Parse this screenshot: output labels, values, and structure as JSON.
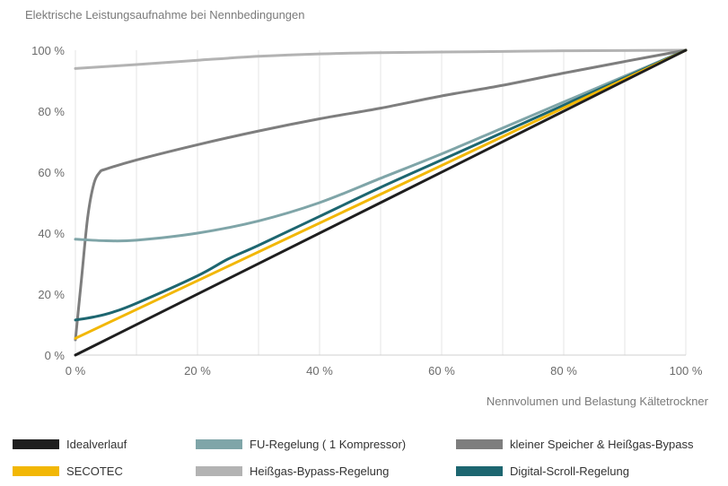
{
  "chart_data": {
    "type": "line",
    "ylabel": "Elektrische Leistungsaufnahme bei Nennbedingungen",
    "xlabel": "Nennvolumen und Belastung Kältetrockner",
    "xlim": [
      0,
      100
    ],
    "ylim": [
      0,
      100
    ],
    "x_ticks": [
      "0 %",
      "20 %",
      "40 %",
      "60 %",
      "80 %",
      "100 %"
    ],
    "y_ticks": [
      "0 %",
      "20 %",
      "40 %",
      "60 %",
      "80 %",
      "100 %"
    ],
    "grid": "vertical",
    "legend_position": "bottom",
    "series": [
      {
        "name": "Idealverlauf",
        "color": "#1e1e1e",
        "points": [
          [
            0,
            0
          ],
          [
            100,
            100
          ]
        ]
      },
      {
        "name": "SECOTEC",
        "color": "#f2b705",
        "points": [
          [
            0,
            5.5
          ],
          [
            100,
            100
          ]
        ]
      },
      {
        "name": "FU-Regelung ( 1 Kompressor)",
        "color": "#7fa5a8",
        "points": [
          [
            0,
            38
          ],
          [
            5,
            37.5
          ],
          [
            10,
            37.7
          ],
          [
            20,
            40
          ],
          [
            30,
            44
          ],
          [
            40,
            50
          ],
          [
            50,
            58
          ],
          [
            60,
            66
          ],
          [
            70,
            74.5
          ],
          [
            80,
            83
          ],
          [
            90,
            91.5
          ],
          [
            100,
            100
          ]
        ]
      },
      {
        "name": "Heißgas-Bypass-Regelung",
        "color": "#b3b3b3",
        "points": [
          [
            0,
            94
          ],
          [
            10,
            95.3
          ],
          [
            20,
            96.7
          ],
          [
            30,
            98
          ],
          [
            40,
            98.8
          ],
          [
            50,
            99.2
          ],
          [
            60,
            99.4
          ],
          [
            70,
            99.6
          ],
          [
            80,
            99.8
          ],
          [
            100,
            100
          ]
        ]
      },
      {
        "name": "kleiner Speicher & Heißgas-Bypass",
        "color": "#7e7e7e",
        "points": [
          [
            0,
            5
          ],
          [
            1,
            25
          ],
          [
            2,
            45
          ],
          [
            3,
            56
          ],
          [
            4,
            60
          ],
          [
            5,
            61
          ],
          [
            10,
            64
          ],
          [
            20,
            69
          ],
          [
            30,
            73.5
          ],
          [
            40,
            77.5
          ],
          [
            50,
            81
          ],
          [
            60,
            85
          ],
          [
            70,
            88.5
          ],
          [
            80,
            92.5
          ],
          [
            90,
            96.3
          ],
          [
            100,
            100
          ]
        ]
      },
      {
        "name": "Digital-Scroll-Regelung",
        "color": "#1d6670",
        "points": [
          [
            0,
            11.5
          ],
          [
            3,
            12.5
          ],
          [
            6,
            14
          ],
          [
            10,
            17
          ],
          [
            20,
            26
          ],
          [
            25,
            31.5
          ],
          [
            30,
            36
          ],
          [
            40,
            45.5
          ],
          [
            50,
            55
          ],
          [
            60,
            64
          ],
          [
            70,
            73
          ],
          [
            80,
            82
          ],
          [
            90,
            91
          ],
          [
            100,
            100
          ]
        ]
      }
    ]
  }
}
